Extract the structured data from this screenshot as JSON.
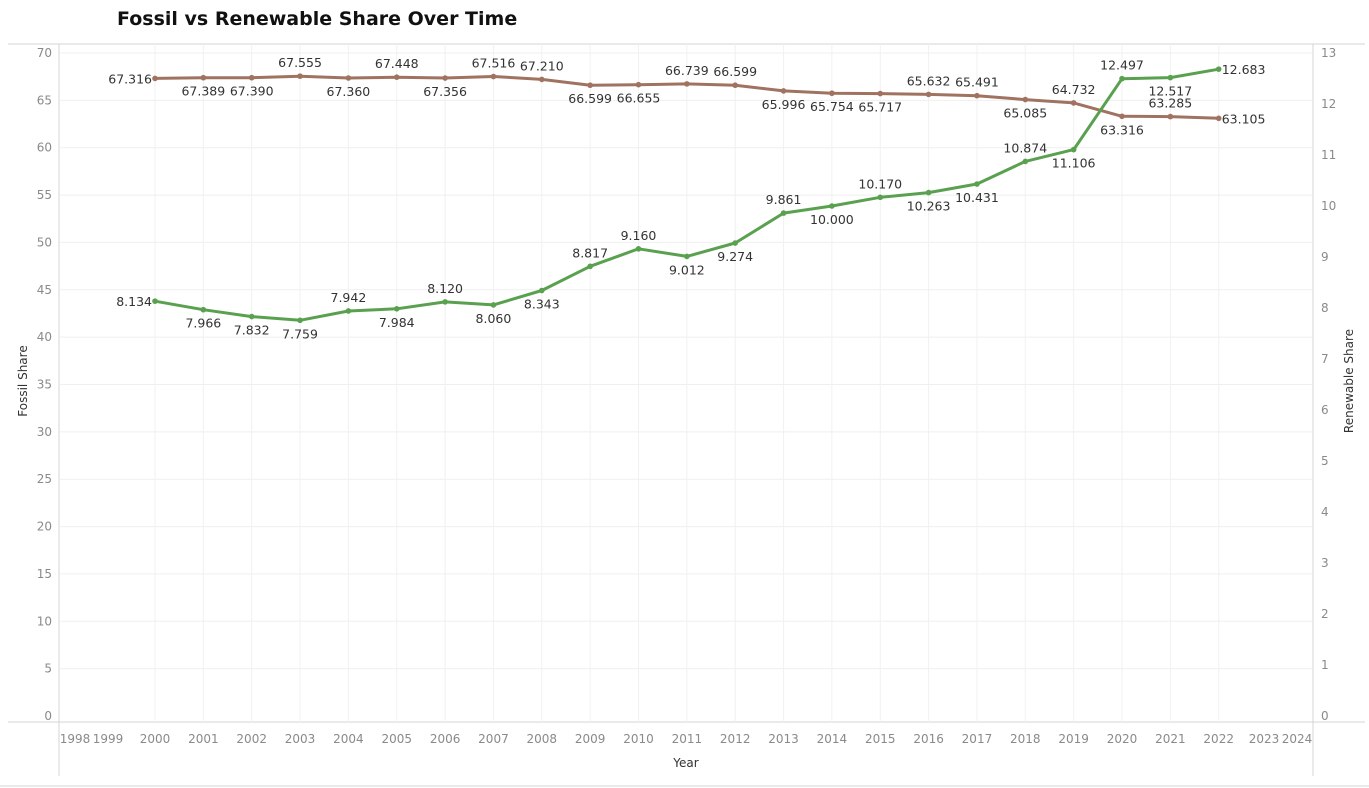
{
  "chart_data": {
    "type": "line",
    "title": "Fossil vs Renewable Share Over Time",
    "xlabel": "Year",
    "ylabel": "Fossil Share",
    "y2label": "Renewable Share",
    "x_ticks": [
      "1998",
      "1999",
      "2000",
      "2001",
      "2002",
      "2003",
      "2004",
      "2005",
      "2006",
      "2007",
      "2008",
      "2009",
      "2010",
      "2011",
      "2012",
      "2013",
      "2014",
      "2015",
      "2016",
      "2017",
      "2018",
      "2019",
      "2020",
      "2021",
      "2022",
      "2023",
      "2024"
    ],
    "ylim": [
      0,
      70
    ],
    "y_ticks": [
      0,
      5,
      10,
      15,
      20,
      25,
      30,
      35,
      40,
      45,
      50,
      55,
      60,
      65,
      70
    ],
    "y2lim": [
      0,
      13
    ],
    "y2_ticks": [
      0,
      1,
      2,
      3,
      4,
      5,
      6,
      7,
      8,
      9,
      10,
      11,
      12,
      13
    ],
    "grid": true,
    "x": [
      2000,
      2001,
      2002,
      2003,
      2004,
      2005,
      2006,
      2007,
      2008,
      2009,
      2010,
      2011,
      2012,
      2013,
      2014,
      2015,
      2016,
      2017,
      2018,
      2019,
      2020,
      2021,
      2022
    ],
    "series": [
      {
        "axis": "left",
        "color": "#a07260",
        "values": [
          67.316,
          67.389,
          67.39,
          67.555,
          67.36,
          67.448,
          67.356,
          67.516,
          67.21,
          66.599,
          66.655,
          66.739,
          66.599,
          65.996,
          65.754,
          65.717,
          65.632,
          65.491,
          65.085,
          64.732,
          63.316,
          63.285,
          63.105
        ],
        "labels": [
          "67.316",
          "67.389",
          "67.390",
          "67.555",
          "67.360",
          "67.448",
          "67.356",
          "67.516",
          "67.210",
          "66.599",
          "66.655",
          "66.739",
          "66.599",
          "65.996",
          "65.754",
          "65.717",
          "65.632",
          "65.491",
          "65.085",
          "64.732",
          "63.316",
          "63.285",
          "63.105"
        ]
      },
      {
        "axis": "right",
        "color": "#59a14f",
        "values": [
          8.134,
          7.966,
          7.832,
          7.759,
          7.942,
          7.984,
          8.12,
          8.06,
          8.343,
          8.817,
          9.16,
          9.012,
          9.274,
          9.861,
          10.0,
          10.17,
          10.263,
          10.431,
          10.874,
          11.106,
          12.497,
          12.517,
          12.683
        ],
        "labels": [
          "8.134",
          "7.966",
          "7.832",
          "7.759",
          "7.942",
          "7.984",
          "8.120",
          "8.060",
          "8.343",
          "8.817",
          "9.160",
          "9.012",
          "9.274",
          "9.861",
          "10.000",
          "10.170",
          "10.263",
          "10.431",
          "10.874",
          "11.106",
          "12.497",
          "12.517",
          "12.683"
        ]
      }
    ]
  }
}
